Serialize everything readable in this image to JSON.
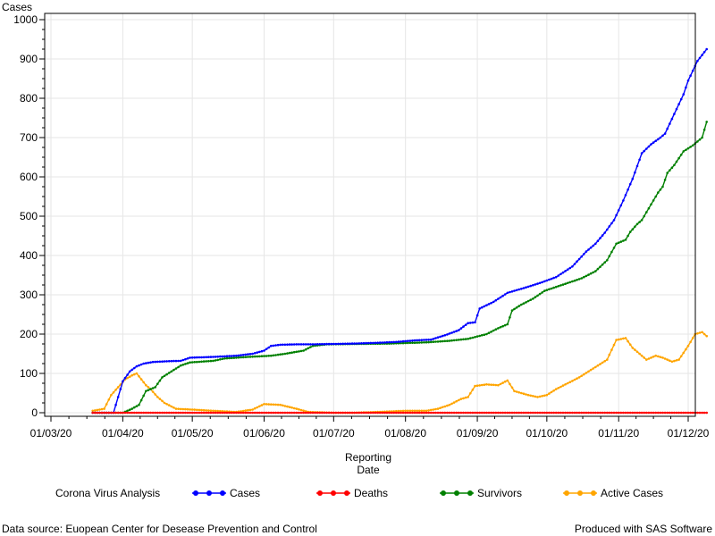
{
  "chart_data": {
    "type": "line",
    "ylabel": "Cases",
    "xlabel_lines": [
      "Reporting",
      "Date"
    ],
    "ylim": [
      0,
      1000
    ],
    "yticks": [
      0,
      100,
      200,
      300,
      400,
      500,
      600,
      700,
      800,
      900,
      1000
    ],
    "x_range": [
      "2020-03-01",
      "2020-12-01"
    ],
    "xticks": [
      {
        "date": "2020-03-01",
        "label": "01/03/20"
      },
      {
        "date": "2020-04-01",
        "label": "01/04/20"
      },
      {
        "date": "2020-05-01",
        "label": "01/05/20"
      },
      {
        "date": "2020-06-01",
        "label": "01/06/20"
      },
      {
        "date": "2020-07-01",
        "label": "01/07/20"
      },
      {
        "date": "2020-08-01",
        "label": "01/08/20"
      },
      {
        "date": "2020-09-01",
        "label": "01/09/20"
      },
      {
        "date": "2020-10-01",
        "label": "01/10/20"
      },
      {
        "date": "2020-11-01",
        "label": "01/11/20"
      },
      {
        "date": "2020-12-01",
        "label": "01/12/20"
      }
    ],
    "grid": true,
    "legend_position": "bottom",
    "legend_title": "Corona Virus Analysis",
    "series": [
      {
        "name": "Cases",
        "color": "#0000ff",
        "points": [
          [
            "2020-03-19",
            0
          ],
          [
            "2020-03-28",
            0
          ],
          [
            "2020-04-01",
            80
          ],
          [
            "2020-04-04",
            105
          ],
          [
            "2020-04-07",
            118
          ],
          [
            "2020-04-10",
            125
          ],
          [
            "2020-04-14",
            129
          ],
          [
            "2020-04-20",
            131
          ],
          [
            "2020-04-26",
            132
          ],
          [
            "2020-04-30",
            140
          ],
          [
            "2020-05-10",
            142
          ],
          [
            "2020-05-20",
            145
          ],
          [
            "2020-05-27",
            150
          ],
          [
            "2020-06-01",
            158
          ],
          [
            "2020-06-04",
            170
          ],
          [
            "2020-06-08",
            173
          ],
          [
            "2020-06-15",
            174
          ],
          [
            "2020-06-22",
            174
          ],
          [
            "2020-07-01",
            175
          ],
          [
            "2020-07-10",
            176
          ],
          [
            "2020-07-20",
            178
          ],
          [
            "2020-07-28",
            180
          ],
          [
            "2020-08-05",
            184
          ],
          [
            "2020-08-12",
            186
          ],
          [
            "2020-08-18",
            197
          ],
          [
            "2020-08-24",
            210
          ],
          [
            "2020-08-28",
            228
          ],
          [
            "2020-08-31",
            230
          ],
          [
            "2020-09-02",
            265
          ],
          [
            "2020-09-08",
            282
          ],
          [
            "2020-09-14",
            305
          ],
          [
            "2020-09-21",
            317
          ],
          [
            "2020-09-28",
            330
          ],
          [
            "2020-10-05",
            345
          ],
          [
            "2020-10-12",
            372
          ],
          [
            "2020-10-18",
            410
          ],
          [
            "2020-10-22",
            430
          ],
          [
            "2020-10-26",
            458
          ],
          [
            "2020-10-30",
            490
          ],
          [
            "2020-11-03",
            540
          ],
          [
            "2020-11-07",
            595
          ],
          [
            "2020-11-11",
            660
          ],
          [
            "2020-11-15",
            683
          ],
          [
            "2020-11-19",
            700
          ],
          [
            "2020-11-21",
            710
          ],
          [
            "2020-11-25",
            760
          ],
          [
            "2020-11-29",
            810
          ],
          [
            "2020-12-01",
            845
          ],
          [
            "2020-12-05",
            895
          ],
          [
            "2020-12-07",
            910
          ],
          [
            "2020-12-09",
            925
          ]
        ]
      },
      {
        "name": "Deaths",
        "color": "#ff0000",
        "points": [
          [
            "2020-03-19",
            0
          ],
          [
            "2020-12-09",
            0
          ]
        ]
      },
      {
        "name": "Survivors",
        "color": "#008000",
        "points": [
          [
            "2020-03-19",
            0
          ],
          [
            "2020-04-01",
            0
          ],
          [
            "2020-04-05",
            10
          ],
          [
            "2020-04-08",
            20
          ],
          [
            "2020-04-11",
            55
          ],
          [
            "2020-04-15",
            65
          ],
          [
            "2020-04-18",
            90
          ],
          [
            "2020-04-22",
            105
          ],
          [
            "2020-04-26",
            120
          ],
          [
            "2020-04-30",
            128
          ],
          [
            "2020-05-10",
            132
          ],
          [
            "2020-05-15",
            138
          ],
          [
            "2020-05-25",
            142
          ],
          [
            "2020-06-04",
            145
          ],
          [
            "2020-06-10",
            150
          ],
          [
            "2020-06-18",
            158
          ],
          [
            "2020-06-22",
            170
          ],
          [
            "2020-06-28",
            174
          ],
          [
            "2020-07-10",
            175
          ],
          [
            "2020-07-25",
            176
          ],
          [
            "2020-08-10",
            179
          ],
          [
            "2020-08-20",
            183
          ],
          [
            "2020-08-28",
            188
          ],
          [
            "2020-09-05",
            200
          ],
          [
            "2020-09-10",
            215
          ],
          [
            "2020-09-14",
            225
          ],
          [
            "2020-09-16",
            260
          ],
          [
            "2020-09-20",
            275
          ],
          [
            "2020-09-25",
            290
          ],
          [
            "2020-09-30",
            310
          ],
          [
            "2020-10-05",
            320
          ],
          [
            "2020-10-10",
            330
          ],
          [
            "2020-10-16",
            342
          ],
          [
            "2020-10-22",
            360
          ],
          [
            "2020-10-27",
            388
          ],
          [
            "2020-10-31",
            430
          ],
          [
            "2020-11-04",
            440
          ],
          [
            "2020-11-06",
            460
          ],
          [
            "2020-11-09",
            480
          ],
          [
            "2020-11-11",
            490
          ],
          [
            "2020-11-15",
            530
          ],
          [
            "2020-11-18",
            560
          ],
          [
            "2020-11-20",
            575
          ],
          [
            "2020-11-22",
            610
          ],
          [
            "2020-11-25",
            630
          ],
          [
            "2020-11-29",
            665
          ],
          [
            "2020-12-03",
            680
          ],
          [
            "2020-12-07",
            700
          ],
          [
            "2020-12-09",
            740
          ]
        ]
      },
      {
        "name": "Active Cases",
        "color": "#ffa500",
        "points": [
          [
            "2020-03-19",
            5
          ],
          [
            "2020-03-24",
            10
          ],
          [
            "2020-03-27",
            45
          ],
          [
            "2020-03-30",
            65
          ],
          [
            "2020-04-02",
            85
          ],
          [
            "2020-04-05",
            95
          ],
          [
            "2020-04-07",
            100
          ],
          [
            "2020-04-09",
            85
          ],
          [
            "2020-04-11",
            70
          ],
          [
            "2020-04-13",
            60
          ],
          [
            "2020-04-16",
            40
          ],
          [
            "2020-04-19",
            25
          ],
          [
            "2020-04-24",
            10
          ],
          [
            "2020-05-01",
            8
          ],
          [
            "2020-05-10",
            5
          ],
          [
            "2020-05-20",
            2
          ],
          [
            "2020-05-27",
            8
          ],
          [
            "2020-06-01",
            22
          ],
          [
            "2020-06-08",
            20
          ],
          [
            "2020-06-15",
            10
          ],
          [
            "2020-06-20",
            2
          ],
          [
            "2020-07-01",
            0
          ],
          [
            "2020-07-10",
            0
          ],
          [
            "2020-07-20",
            2
          ],
          [
            "2020-08-01",
            5
          ],
          [
            "2020-08-10",
            5
          ],
          [
            "2020-08-15",
            10
          ],
          [
            "2020-08-20",
            20
          ],
          [
            "2020-08-25",
            35
          ],
          [
            "2020-08-28",
            40
          ],
          [
            "2020-08-31",
            68
          ],
          [
            "2020-09-05",
            72
          ],
          [
            "2020-09-10",
            70
          ],
          [
            "2020-09-14",
            82
          ],
          [
            "2020-09-17",
            55
          ],
          [
            "2020-09-20",
            50
          ],
          [
            "2020-09-23",
            45
          ],
          [
            "2020-09-27",
            40
          ],
          [
            "2020-10-01",
            45
          ],
          [
            "2020-10-05",
            60
          ],
          [
            "2020-10-10",
            75
          ],
          [
            "2020-10-15",
            90
          ],
          [
            "2020-10-19",
            105
          ],
          [
            "2020-10-23",
            120
          ],
          [
            "2020-10-27",
            135
          ],
          [
            "2020-10-31",
            185
          ],
          [
            "2020-11-04",
            190
          ],
          [
            "2020-11-07",
            165
          ],
          [
            "2020-11-10",
            150
          ],
          [
            "2020-11-13",
            135
          ],
          [
            "2020-11-17",
            145
          ],
          [
            "2020-11-20",
            140
          ],
          [
            "2020-11-24",
            130
          ],
          [
            "2020-11-27",
            135
          ],
          [
            "2020-12-01",
            170
          ],
          [
            "2020-12-04",
            200
          ],
          [
            "2020-12-07",
            205
          ],
          [
            "2020-12-09",
            195
          ]
        ]
      }
    ]
  },
  "footer": {
    "source": "Data source: Euopean Center for Desease Prevention and Control",
    "produced": "Produced with SAS Software"
  }
}
